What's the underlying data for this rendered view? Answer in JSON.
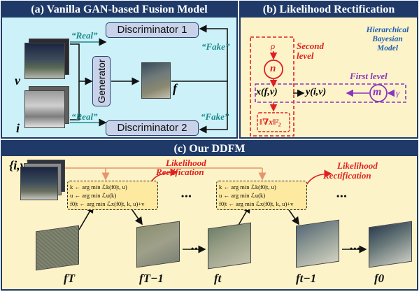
{
  "panel_a": {
    "title": "(a) Vanilla GAN-based Fusion Model",
    "disc1": "Discriminator 1",
    "disc2": "Discriminator 2",
    "generator": "Generator",
    "real_top": "“Real”",
    "real_bottom": "“Real”",
    "fake_top": "“Fake”",
    "fake_bottom": "“Fake”",
    "v_label": "v",
    "i_label": "i",
    "f_label": "f"
  },
  "panel_b": {
    "title": "(b) Likelihood Rectification",
    "model_label_1": "Hierarchical",
    "model_label_2": "Bayesian",
    "model_label_3": "Model",
    "second_level_1": "Second",
    "second_level_2": "level",
    "first_level": "First level",
    "rho": "ρ",
    "n": "n",
    "m": "m",
    "gamma": "γ",
    "x_node": "x(f,v)",
    "y_node": "y(i,v)",
    "grad_node": "‖∇x‖²₂"
  },
  "panel_c": {
    "title": "(c) Our DDFM",
    "iv_label": "{i,v}",
    "rect_1a": "Likelihood",
    "rect_1b": "Rectification",
    "rect_2a": "Likelihood",
    "rect_2b": "Rectification",
    "box1": [
      "k ← arg min ℒk(f0|t, u)",
      "u ← arg min ℒu(k)",
      "f0|t ← arg min ℒx(f0|t, k, u)+v"
    ],
    "box2": [
      "k ← arg min ℒk(f0|t, u)",
      "u ← arg min ℒu(k)",
      "f0|t ← arg min ℒx(f0|t, k, u)+v"
    ],
    "dots": "•••",
    "labels": [
      "fT",
      "fT−1",
      "ft",
      "ft−1",
      "f0"
    ]
  },
  "colors": {
    "header": "#1f3a68",
    "panel_a_bg": "#ccf1f8",
    "panel_b_bg": "#fdf3c8",
    "panel_c_bg": "#fdf3c8",
    "teal": "#1d8a8a",
    "red": "#e02020",
    "purple": "#8a35c0"
  }
}
